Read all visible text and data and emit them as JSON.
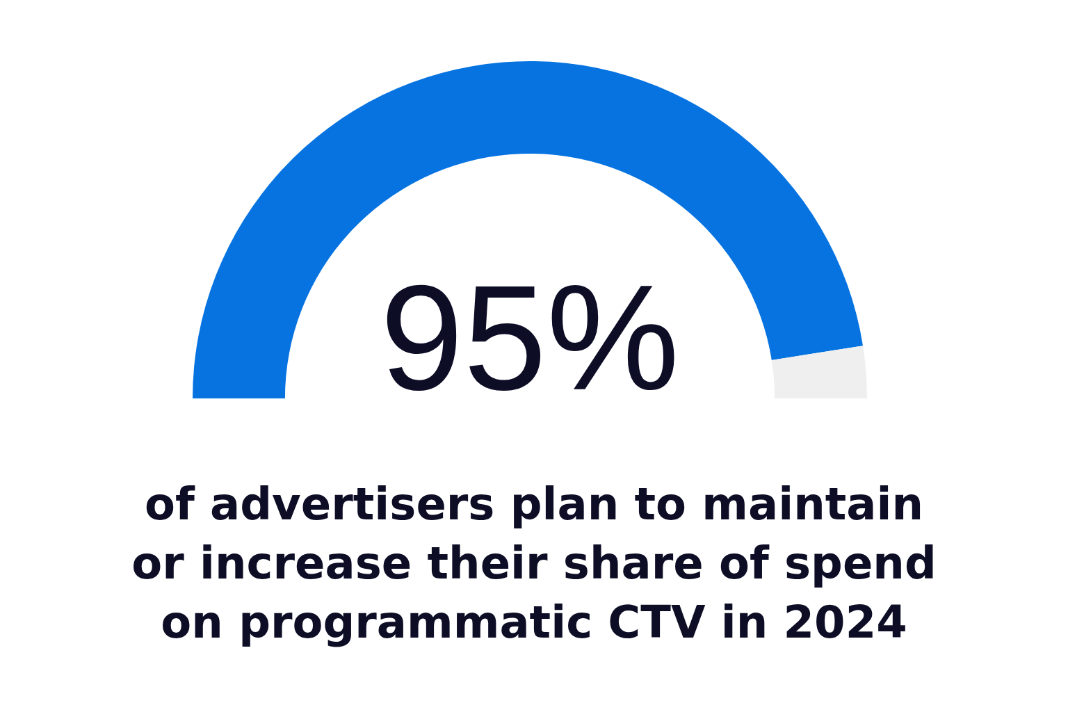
{
  "chart_data": {
    "type": "donut",
    "categories": [
      null,
      null
    ],
    "values": [
      95,
      5
    ],
    "colors": [
      "#0673e1",
      "#efefef"
    ],
    "value_labels": [
      "95%",
      null
    ],
    "annotations": [
      "of advertisers plan to maintain or increase their share of spend on programmatic CTV in 2024"
    ]
  }
}
